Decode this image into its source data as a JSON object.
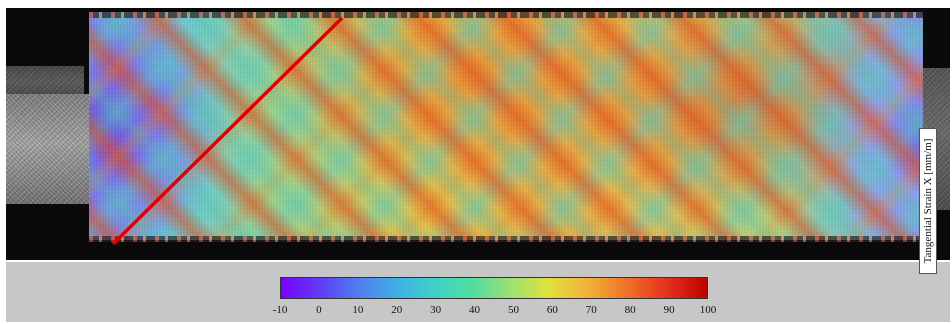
{
  "colorbar": {
    "label": "Tangential Strain X [mm/m]",
    "ticks": [
      "-10",
      "0",
      "10",
      "20",
      "30",
      "40",
      "50",
      "60",
      "70",
      "80",
      "90",
      "100"
    ],
    "min": -10,
    "max": 100
  },
  "overlay": {
    "annotation_line_color": "#e00000"
  }
}
